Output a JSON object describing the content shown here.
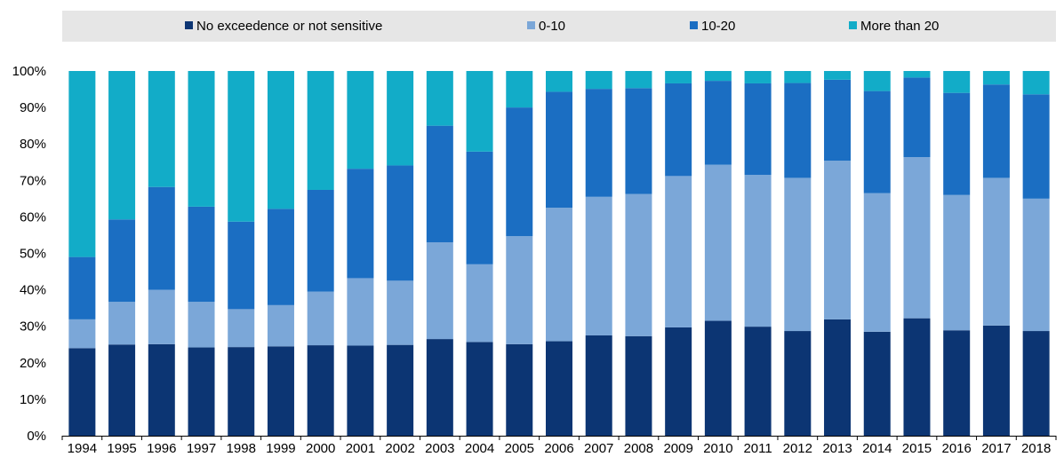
{
  "chart_data": {
    "type": "bar",
    "stacked": true,
    "title": "",
    "xlabel": "",
    "ylabel": "",
    "ylim": [
      0,
      100
    ],
    "y_ticks": [
      "0%",
      "10%",
      "20%",
      "30%",
      "40%",
      "50%",
      "60%",
      "70%",
      "80%",
      "90%",
      "100%"
    ],
    "grid": false,
    "legend_position": "top",
    "categories": [
      "1994",
      "1995",
      "1996",
      "1997",
      "1998",
      "1999",
      "2000",
      "2001",
      "2002",
      "2003",
      "2004",
      "2005",
      "2006",
      "2007",
      "2008",
      "2009",
      "2010",
      "2011",
      "2012",
      "2013",
      "2014",
      "2015",
      "2016",
      "2017",
      "2018"
    ],
    "series": [
      {
        "name": "No exceedence or not sensitive",
        "color": "#0c3573",
        "values": [
          24.0,
          25.0,
          25.1,
          24.2,
          24.3,
          24.5,
          24.8,
          24.7,
          24.9,
          26.5,
          25.7,
          25.1,
          25.9,
          27.5,
          27.3,
          29.7,
          31.5,
          29.9,
          28.7,
          31.9,
          28.5,
          32.2,
          28.9,
          30.2,
          28.7
        ]
      },
      {
        "name": "0-10",
        "color": "#7ba7d8",
        "values": [
          7.9,
          11.7,
          14.9,
          12.5,
          10.4,
          11.3,
          14.7,
          18.5,
          17.6,
          26.5,
          21.3,
          29.6,
          36.6,
          38.0,
          39.0,
          41.5,
          42.8,
          41.6,
          42.0,
          43.5,
          38.0,
          44.2,
          37.1,
          40.5,
          36.3
        ]
      },
      {
        "name": "10-20",
        "color": "#1b6ec2",
        "values": [
          17.1,
          22.6,
          28.2,
          26.1,
          24.0,
          26.4,
          27.9,
          30.0,
          31.6,
          32.0,
          30.9,
          35.3,
          31.8,
          29.6,
          29.0,
          25.4,
          23.0,
          25.1,
          26.0,
          22.2,
          28.0,
          21.8,
          28.0,
          25.6,
          28.6
        ]
      },
      {
        "name": "More than 20",
        "color": "#12acc8",
        "values": [
          51.0,
          40.7,
          31.8,
          37.2,
          41.3,
          37.8,
          32.6,
          26.8,
          25.9,
          15.0,
          22.1,
          10.0,
          5.7,
          4.9,
          4.7,
          3.4,
          2.7,
          3.4,
          3.3,
          2.4,
          5.5,
          1.8,
          6.0,
          3.7,
          6.4
        ]
      }
    ]
  }
}
